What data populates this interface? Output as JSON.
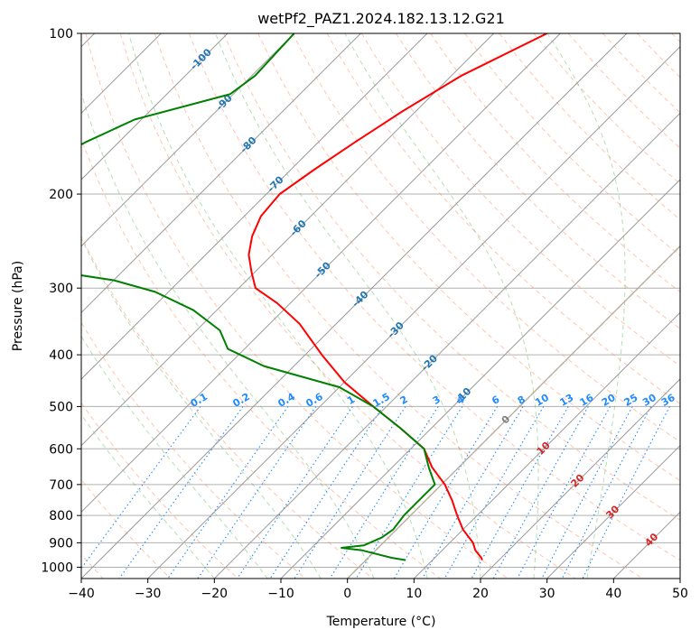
{
  "chart_data": {
    "type": "line",
    "title": "wetPf2_PAZ1.2024.182.13.12.G21",
    "xlabel": "Temperature (°C)",
    "ylabel": "Pressure (hPa)",
    "xlim": [
      -40,
      50
    ],
    "ylim": [
      1050,
      100
    ],
    "y_scale": "log",
    "grid": true,
    "x_ticks": [
      -40,
      -30,
      -20,
      -10,
      0,
      10,
      20,
      30,
      40,
      50
    ],
    "x_tick_labels": [
      "−40",
      "−30",
      "−20",
      "−10",
      "0",
      "10",
      "20",
      "30",
      "40",
      "50"
    ],
    "y_ticks": [
      100,
      200,
      300,
      400,
      500,
      600,
      700,
      800,
      900,
      1000
    ],
    "y_tick_labels": [
      "100",
      "200",
      "300",
      "400",
      "500",
      "600",
      "700",
      "800",
      "900",
      "1000"
    ],
    "colors": {
      "temperature": "#ff0000",
      "dewpoint": "#008000",
      "isotherm": "#000000",
      "dry_adiabat": "#ff7f50",
      "moist_adiabat": "#2ca02c",
      "mixing_ratio": "#1f8bff",
      "isotherm_label": "#1f77b4",
      "upper_isotherm_label": "#d62728",
      "zero_label": "#7f7f7f",
      "zero_isotherm": "#d2b48c"
    },
    "isotherm_labels": [
      {
        "t": -100,
        "text": "-100",
        "p": 112
      },
      {
        "t": -90,
        "text": "-90",
        "p": 135
      },
      {
        "t": -80,
        "text": "-80",
        "p": 162
      },
      {
        "t": -70,
        "text": "-70",
        "p": 192
      },
      {
        "t": -60,
        "text": "-60",
        "p": 232
      },
      {
        "t": -50,
        "text": "-50",
        "p": 278
      },
      {
        "t": -40,
        "text": "-40",
        "p": 315
      },
      {
        "t": -30,
        "text": "-30",
        "p": 360
      },
      {
        "t": -20,
        "text": "-20",
        "p": 415
      },
      {
        "t": -10,
        "text": "-10",
        "p": 478
      },
      {
        "t": 0,
        "text": "0",
        "p": 530
      },
      {
        "t": 10,
        "text": "10",
        "p": 600
      },
      {
        "t": 20,
        "text": "20",
        "p": 690
      },
      {
        "t": 30,
        "text": "30",
        "p": 790
      },
      {
        "t": 40,
        "text": "40",
        "p": 890
      }
    ],
    "mixing_ratio_labels": [
      "0.1",
      "0.2",
      "0.4",
      "0.6",
      "1",
      "1.5",
      "2",
      "3",
      "4",
      "6",
      "8",
      "10",
      "13",
      "16",
      "20",
      "25",
      "30",
      "36"
    ],
    "series": [
      {
        "name": "Temperature",
        "points": [
          [
            -52.0,
            100
          ],
          [
            -58.5,
            120
          ],
          [
            -62.0,
            140
          ],
          [
            -64.5,
            160
          ],
          [
            -66.5,
            180
          ],
          [
            -68.0,
            200
          ],
          [
            -67.5,
            220
          ],
          [
            -65.8,
            240
          ],
          [
            -63.5,
            260
          ],
          [
            -60.5,
            280
          ],
          [
            -57.5,
            300
          ],
          [
            -52.0,
            320
          ],
          [
            -45.5,
            350
          ],
          [
            -37.5,
            400
          ],
          [
            -30.0,
            450
          ],
          [
            -22.0,
            500
          ],
          [
            -14.5,
            550
          ],
          [
            -8.0,
            600
          ],
          [
            -4.0,
            650
          ],
          [
            0.5,
            700
          ],
          [
            4.0,
            750
          ],
          [
            7.0,
            800
          ],
          [
            10.0,
            850
          ],
          [
            13.5,
            900
          ],
          [
            15.0,
            930
          ],
          [
            17.0,
            960
          ],
          [
            17.5,
            970
          ]
        ]
      },
      {
        "name": "Dewpoint",
        "points": [
          [
            -90.0,
            100
          ],
          [
            -89.5,
            120
          ],
          [
            -90.5,
            130
          ],
          [
            -101.0,
            145
          ],
          [
            -105.0,
            160
          ],
          [
            -107.5,
            175
          ],
          [
            -107.0,
            190
          ],
          [
            -109.5,
            200
          ],
          [
            -118.0,
            210
          ],
          [
            -122.0,
            220
          ],
          [
            -113.0,
            235
          ],
          [
            -116.5,
            250
          ],
          [
            -108.0,
            262
          ],
          [
            -94.0,
            275
          ],
          [
            -80.0,
            290
          ],
          [
            -72.0,
            305
          ],
          [
            -63.5,
            330
          ],
          [
            -56.5,
            360
          ],
          [
            -52.5,
            390
          ],
          [
            -44.5,
            420
          ],
          [
            -30.0,
            460
          ],
          [
            -22.0,
            500
          ],
          [
            -14.5,
            550
          ],
          [
            -8.0,
            600
          ],
          [
            -4.5,
            650
          ],
          [
            -1.0,
            700
          ],
          [
            -1.0,
            750
          ],
          [
            -1.0,
            800
          ],
          [
            -0.5,
            850
          ],
          [
            -1.0,
            880
          ],
          [
            -2.5,
            910
          ],
          [
            -5.5,
            920
          ],
          [
            -2.0,
            930
          ],
          [
            3.5,
            960
          ],
          [
            6.0,
            970
          ]
        ]
      }
    ]
  }
}
